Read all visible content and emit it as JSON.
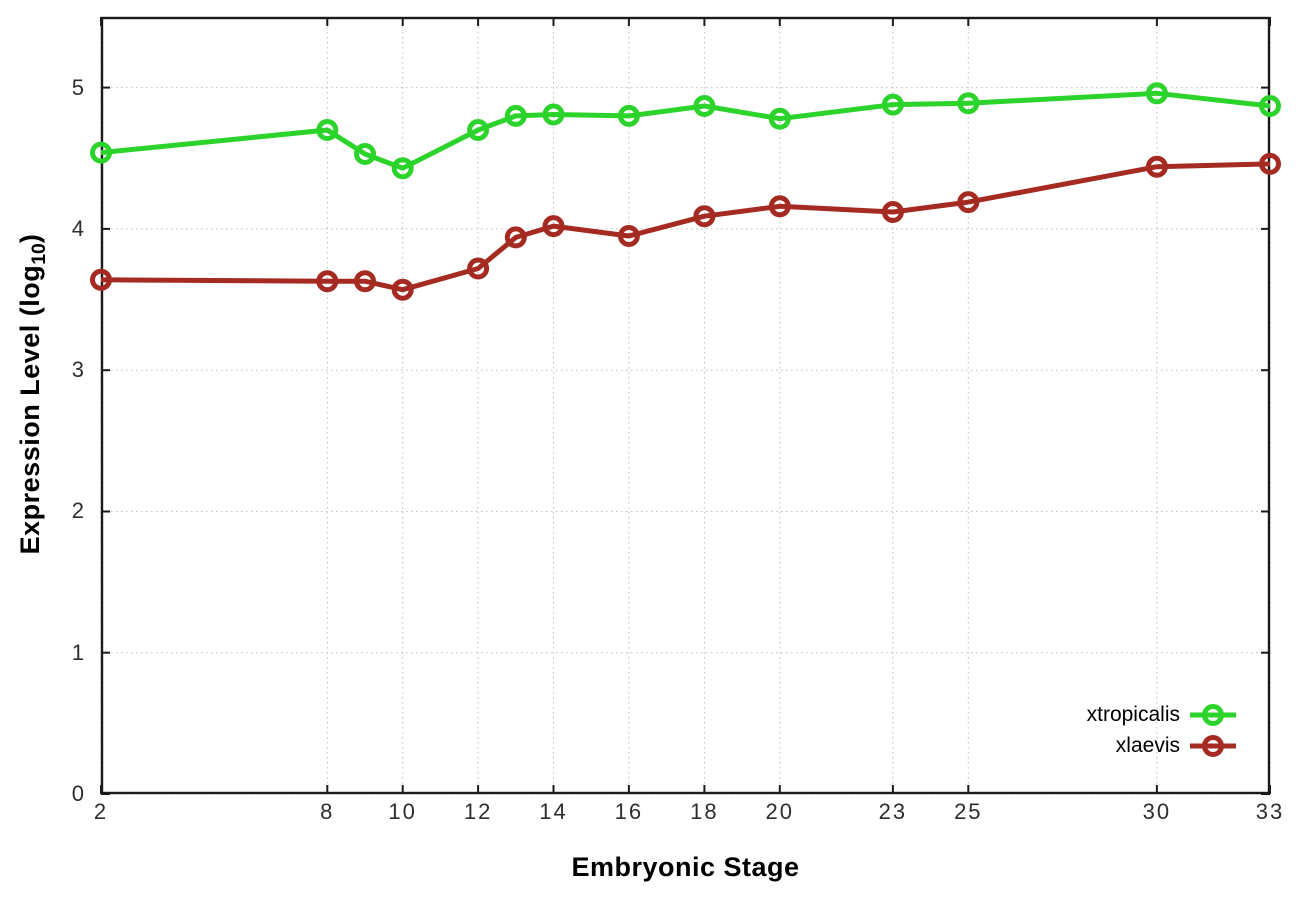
{
  "figure": {
    "background": "#ffffff",
    "border_color": "#1a1a1a",
    "grid_color": "#bdbdbd",
    "tick_label_color": "#2e2e2e",
    "tick_labels_x": [
      "2",
      "8",
      "10",
      "12",
      "14",
      "16",
      "18",
      "20",
      "23",
      "25",
      "30",
      "33"
    ],
    "tick_labels_y": [
      "0",
      "1",
      "2",
      "3",
      "4",
      "5"
    ]
  },
  "chart_data": {
    "type": "line",
    "title": "",
    "xlabel": "Embryonic Stage",
    "ylabel": "Expression Level (log10)",
    "ylabel_main": "Expression Level (log",
    "ylabel_sub": "10",
    "ylabel_close": ")",
    "xlim": [
      2,
      33
    ],
    "ylim": [
      0,
      5.5
    ],
    "x_ticks": [
      2,
      8,
      10,
      12,
      14,
      16,
      18,
      20,
      23,
      25,
      30,
      33
    ],
    "y_ticks": [
      0,
      1,
      2,
      3,
      4,
      5
    ],
    "grid": true,
    "grid_style": "dotted",
    "legend_position": "inside-bottom-right",
    "marker": "open-circle",
    "x": [
      2,
      8,
      9,
      10,
      12,
      13,
      14,
      16,
      18,
      20,
      23,
      25,
      30,
      33
    ],
    "series": [
      {
        "name": "xtropicalis",
        "color": "#2bd32b",
        "values": [
          4.54,
          4.7,
          4.53,
          4.43,
          4.7,
          4.8,
          4.81,
          4.8,
          4.87,
          4.78,
          4.88,
          4.89,
          4.96,
          4.87
        ]
      },
      {
        "name": "xlaevis",
        "color": "#a52a21",
        "values": [
          3.64,
          3.63,
          3.63,
          3.57,
          3.72,
          3.94,
          4.02,
          3.95,
          4.09,
          4.16,
          4.12,
          4.19,
          4.44,
          4.46
        ]
      }
    ]
  }
}
